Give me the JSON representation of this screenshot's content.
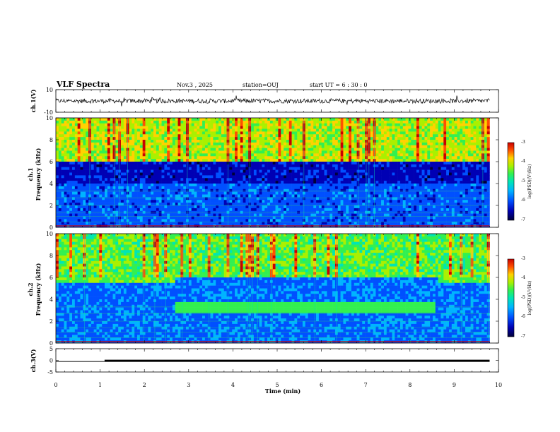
{
  "header": {
    "title": "VLF Spectra",
    "date": "Nov.3  , 2025",
    "station": "station=OUJ",
    "start": "start  UT =   6  : 30 : 0"
  },
  "colors": {
    "palette": [
      "#00003a",
      "#0000b4",
      "#0050ff",
      "#00b4ff",
      "#00e6b4",
      "#32f050",
      "#aaf000",
      "#ffd200",
      "#ff5000",
      "#c80000"
    ]
  },
  "chart_data": [
    {
      "type": "line",
      "name": "ch1-waveform",
      "ylabel": "ch.1(V)",
      "ylim": [
        -10,
        10
      ],
      "y_ticks": [
        "10",
        "-10"
      ],
      "x_range": [
        0,
        9.8
      ],
      "description_values": {
        "baseline": 0,
        "typical_amplitude": 2,
        "spike_amplitude": 5
      }
    },
    {
      "type": "heatmap",
      "name": "ch1-spectrogram",
      "ylabel": "ch.1\nFrequency  (kHz)",
      "ylabel_top": "ch.1",
      "ylabel_bottom": "Frequency  (kHz)",
      "ylim": [
        0,
        10
      ],
      "y_ticks": [
        "0",
        "2",
        "4",
        "6",
        "8",
        "10"
      ],
      "x_range": [
        0,
        9.8
      ],
      "colorbar": {
        "label": "log(PSD)(V²/Hz)",
        "range": [
          -7,
          -3
        ],
        "ticks": [
          "-3",
          "-4",
          "-5",
          "-6",
          "-7"
        ]
      }
    },
    {
      "type": "heatmap",
      "name": "ch2-spectrogram",
      "ylabel": "ch.2\nFrequency  (kHz)",
      "ylabel_top": "ch.2",
      "ylabel_bottom": "Frequency  (kHz)",
      "ylim": [
        0,
        10
      ],
      "y_ticks": [
        "0",
        "2",
        "4",
        "6",
        "8",
        "10"
      ],
      "x_range": [
        0,
        9.8
      ],
      "colorbar": {
        "label": "log(PSD)(V²/Hz)",
        "range": [
          -7,
          -3
        ],
        "ticks": [
          "-3",
          "-4",
          "-5",
          "-6",
          "-7"
        ]
      }
    },
    {
      "type": "line",
      "name": "ch3-signal",
      "ylabel": "ch.3(V)",
      "ylim": [
        -5,
        5
      ],
      "y_ticks": [
        "5",
        "0",
        "-5"
      ],
      "x": [
        0,
        1.1,
        1.1,
        9.8
      ],
      "y": [
        -0.5,
        -0.5,
        -0.5,
        -0.5
      ],
      "thick_from": 1.1
    }
  ],
  "xaxis": {
    "label": "Time  (min)",
    "ticks": [
      "0",
      "1",
      "2",
      "3",
      "4",
      "5",
      "6",
      "7",
      "8",
      "9",
      "10"
    ],
    "xlim": [
      0,
      10
    ]
  }
}
